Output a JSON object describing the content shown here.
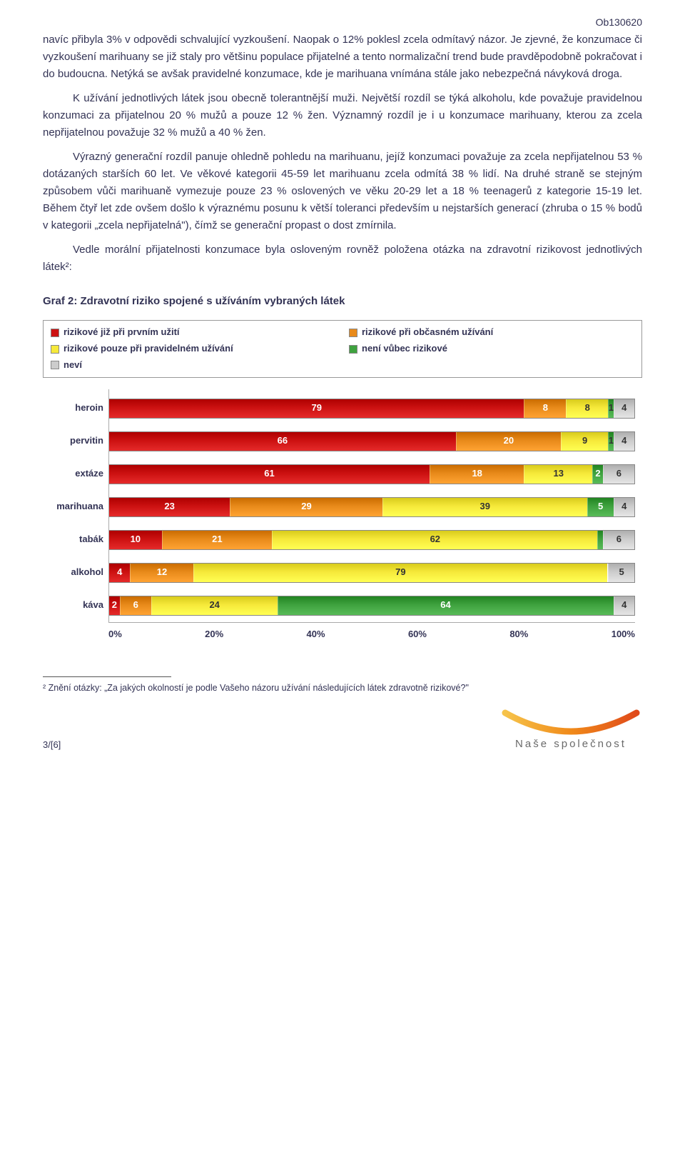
{
  "header_code": "Ob130620",
  "paragraphs": {
    "p1": "navíc přibyla 3% v odpovědi schvalující vyzkoušení. Naopak o 12% poklesl zcela odmítavý názor. Je zjevné, že konzumace či vyzkoušení marihuany se již staly pro většinu populace přijatelné a tento normalizační trend bude pravděpodobně pokračovat i do budoucna. Netýká se avšak pravidelné konzumace, kde je marihuana vnímána stále jako nebezpečná návyková droga.",
    "p2": "K užívání jednotlivých látek jsou obecně tolerantnější muži. Největší rozdíl se týká alkoholu, kde považuje pravidelnou konzumaci za přijatelnou 20 % mužů a pouze 12 % žen. Významný rozdíl je i u konzumace marihuany, kterou za zcela nepřijatelnou považuje 32 % mužů a 40 % žen.",
    "p3": "Výrazný generační rozdíl panuje ohledně pohledu na marihuanu, jejíž konzumaci považuje za zcela nepřijatelnou 53 % dotázaných starších 60 let. Ve věkové kategorii 45-59 let marihuanu zcela odmítá 38 % lidí. Na druhé straně se stejným způsobem vůči marihuaně vymezuje pouze 23 % oslovených ve věku 20-29 let a 18 % teenagerů z kategorie 15-19 let. Během čtyř let zde ovšem došlo k výraznému posunu k větší toleranci především u nejstarších generací (zhruba o 15 % bodů v kategorii „zcela nepřijatelná\"), čímž se generační propast o dost zmírnila.",
    "p4": "Vedle morální přijatelnosti konzumace byla osloveným rovněž položena otázka na zdravotní rizikovost jednotlivých látek²:"
  },
  "chart": {
    "title": "Graf 2: Zdravotní riziko spojené s užíváním vybraných látek",
    "legend": [
      {
        "label": "rizikové již při prvním užití",
        "color": "#cc1111"
      },
      {
        "label": "rizikové při občasném užívání",
        "color": "#e88a1a"
      },
      {
        "label": "rizikové pouze při pravidelném užívání",
        "color": "#f6e93a"
      },
      {
        "label": "není vůbec rizikové",
        "color": "#3fa23f"
      },
      {
        "label": "neví",
        "color": "#cccccc"
      }
    ],
    "categories": [
      {
        "label": "heroin",
        "segments": [
          {
            "value": 79,
            "color": "#cc1111",
            "text_color": "#ffffff"
          },
          {
            "value": 8,
            "color": "#e88a1a",
            "text_color": "#ffffff"
          },
          {
            "value": 8,
            "color": "#f6e93a",
            "text_color": "#333333"
          },
          {
            "value": 1,
            "color": "#3fa23f",
            "text_color": "#333333"
          },
          {
            "value": 4,
            "color": "#cccccc",
            "text_color": "#333333"
          }
        ]
      },
      {
        "label": "pervitin",
        "segments": [
          {
            "value": 66,
            "color": "#cc1111",
            "text_color": "#ffffff"
          },
          {
            "value": 20,
            "color": "#e88a1a",
            "text_color": "#ffffff"
          },
          {
            "value": 9,
            "color": "#f6e93a",
            "text_color": "#333333"
          },
          {
            "value": 1,
            "color": "#3fa23f",
            "text_color": "#333333"
          },
          {
            "value": 4,
            "color": "#cccccc",
            "text_color": "#333333"
          }
        ]
      },
      {
        "label": "extáze",
        "segments": [
          {
            "value": 61,
            "color": "#cc1111",
            "text_color": "#ffffff"
          },
          {
            "value": 18,
            "color": "#e88a1a",
            "text_color": "#ffffff"
          },
          {
            "value": 13,
            "color": "#f6e93a",
            "text_color": "#333333"
          },
          {
            "value": 2,
            "color": "#3fa23f",
            "text_color": "#ffffff"
          },
          {
            "value": 6,
            "color": "#cccccc",
            "text_color": "#333333"
          }
        ]
      },
      {
        "label": "marihuana",
        "segments": [
          {
            "value": 23,
            "color": "#cc1111",
            "text_color": "#ffffff"
          },
          {
            "value": 29,
            "color": "#e88a1a",
            "text_color": "#ffffff"
          },
          {
            "value": 39,
            "color": "#f6e93a",
            "text_color": "#333333"
          },
          {
            "value": 5,
            "color": "#3fa23f",
            "text_color": "#ffffff"
          },
          {
            "value": 4,
            "color": "#cccccc",
            "text_color": "#333333"
          }
        ]
      },
      {
        "label": "tabák",
        "segments": [
          {
            "value": 10,
            "color": "#cc1111",
            "text_color": "#ffffff"
          },
          {
            "value": 21,
            "color": "#e88a1a",
            "text_color": "#ffffff"
          },
          {
            "value": 62,
            "color": "#f6e93a",
            "text_color": "#333333"
          },
          {
            "value": 1,
            "color": "#3fa23f",
            "text_color": "#ffffff",
            "hide_value": true
          },
          {
            "value": 6,
            "color": "#cccccc",
            "text_color": "#333333"
          }
        ]
      },
      {
        "label": "alkohol",
        "segments": [
          {
            "value": 4,
            "color": "#cc1111",
            "text_color": "#ffffff"
          },
          {
            "value": 12,
            "color": "#e88a1a",
            "text_color": "#ffffff"
          },
          {
            "value": 79,
            "color": "#f6e93a",
            "text_color": "#333333"
          },
          {
            "value": 0,
            "color": "#3fa23f",
            "text_color": "#ffffff",
            "hide_value": true
          },
          {
            "value": 5,
            "color": "#cccccc",
            "text_color": "#333333"
          }
        ]
      },
      {
        "label": "káva",
        "segments": [
          {
            "value": 2,
            "color": "#cc1111",
            "text_color": "#ffffff"
          },
          {
            "value": 6,
            "color": "#e88a1a",
            "text_color": "#ffffff"
          },
          {
            "value": 24,
            "color": "#f6e93a",
            "text_color": "#333333"
          },
          {
            "value": 64,
            "color": "#3fa23f",
            "text_color": "#ffffff"
          },
          {
            "value": 4,
            "color": "#cccccc",
            "text_color": "#333333"
          }
        ]
      }
    ],
    "xaxis": [
      "0%",
      "20%",
      "40%",
      "60%",
      "80%",
      "100%"
    ]
  },
  "footnote": "² Znění otázky: „Za jakých okolností je podle Vašeho názoru užívání následujících látek zdravotně rizikové?\"",
  "page_number": "3/[6]",
  "logo_text": "Naše společnost",
  "logo_color_left": "#f6a623",
  "logo_color_right": "#e04a1a"
}
